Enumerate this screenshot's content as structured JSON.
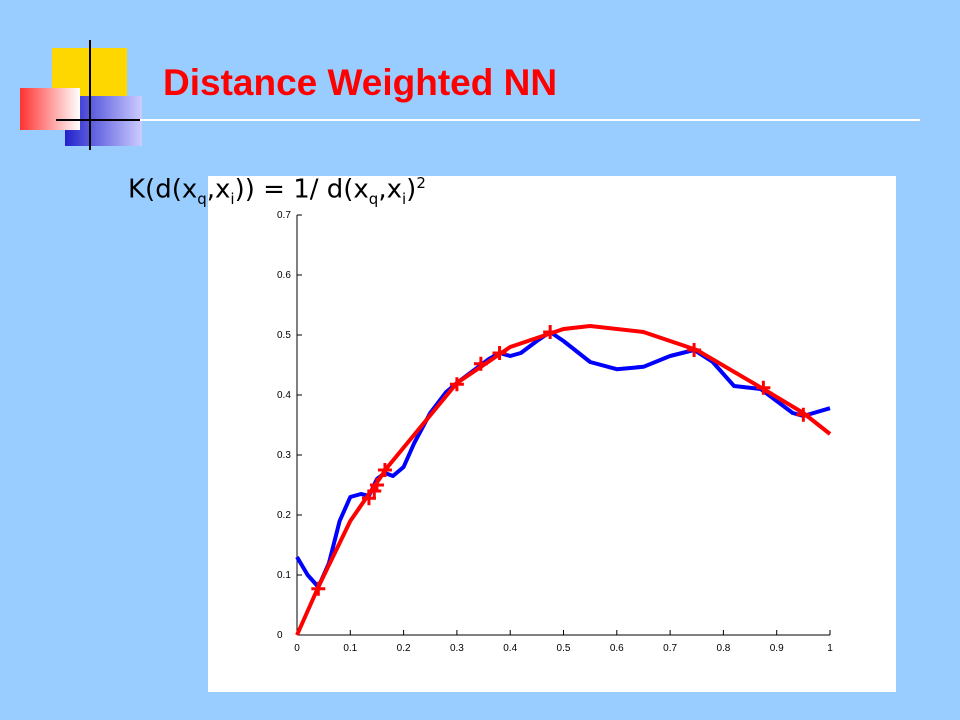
{
  "slide": {
    "title": "Distance Weighted NN",
    "formula": [
      "K(d(x",
      "q",
      ",x",
      "i",
      ")) = 1/ d(x",
      "q",
      ",x",
      "i",
      ")",
      "2"
    ]
  },
  "chart_data": {
    "type": "line",
    "xlim": [
      0,
      1
    ],
    "xticks": [
      0,
      0.1,
      0.2,
      0.3,
      0.4,
      0.5,
      0.6,
      0.7,
      0.8,
      0.9,
      1
    ],
    "ylim": [
      0,
      0.7
    ],
    "yticks": [
      0,
      0.1,
      0.2,
      0.3,
      0.4,
      0.5,
      0.6,
      0.7
    ],
    "series": [
      {
        "type": "line",
        "color": "#0000ff",
        "x": [
          0,
          0.02,
          0.04,
          0.06,
          0.08,
          0.1,
          0.12,
          0.135,
          0.15,
          0.165,
          0.18,
          0.2,
          0.22,
          0.25,
          0.28,
          0.3,
          0.33,
          0.36,
          0.38,
          0.4,
          0.42,
          0.45,
          0.475,
          0.5,
          0.55,
          0.6,
          0.65,
          0.7,
          0.745,
          0.78,
          0.82,
          0.87,
          0.9,
          0.93,
          0.95,
          1
        ],
        "values": [
          0.13,
          0.1,
          0.08,
          0.12,
          0.19,
          0.23,
          0.235,
          0.232,
          0.26,
          0.27,
          0.265,
          0.28,
          0.32,
          0.37,
          0.405,
          0.42,
          0.44,
          0.46,
          0.47,
          0.465,
          0.47,
          0.49,
          0.505,
          0.49,
          0.455,
          0.443,
          0.447,
          0.465,
          0.475,
          0.455,
          0.415,
          0.41,
          0.39,
          0.37,
          0.365,
          0.378
        ]
      },
      {
        "type": "line",
        "color": "#ff0000",
        "x": [
          0,
          0.04,
          0.1,
          0.17,
          0.3,
          0.4,
          0.5,
          0.55,
          0.65,
          0.75,
          0.875,
          0.95,
          1
        ],
        "values": [
          0,
          0.08,
          0.19,
          0.28,
          0.42,
          0.48,
          0.51,
          0.515,
          0.505,
          0.475,
          0.41,
          0.37,
          0.335
        ]
      },
      {
        "type": "scatter",
        "color": "#ff0000",
        "x": [
          0.04,
          0.135,
          0.145,
          0.15,
          0.165,
          0.3,
          0.345,
          0.38,
          0.475,
          0.745,
          0.875,
          0.95
        ],
        "values": [
          0.077,
          0.228,
          0.24,
          0.25,
          0.275,
          0.418,
          0.452,
          0.47,
          0.505,
          0.475,
          0.412,
          0.367
        ]
      }
    ]
  }
}
